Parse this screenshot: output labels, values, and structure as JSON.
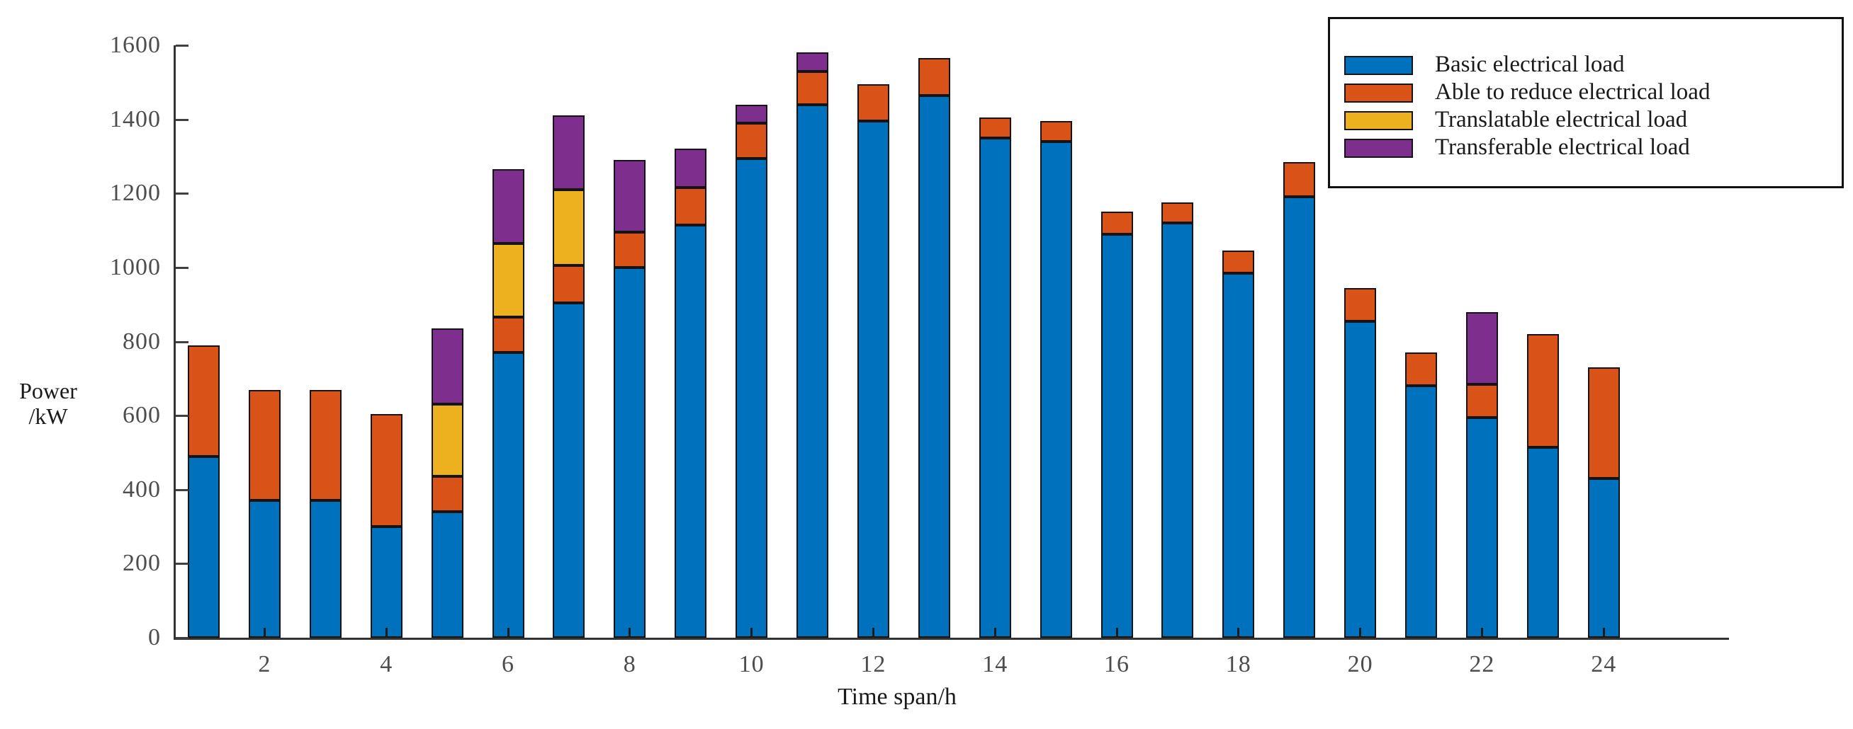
{
  "chart_data": {
    "type": "bar",
    "stacked": true,
    "title": "",
    "xlabel": "Time span/h",
    "ylabel_line1": "Power",
    "ylabel_line2": "/kW",
    "x": [
      1,
      2,
      3,
      4,
      5,
      6,
      7,
      8,
      9,
      10,
      11,
      12,
      13,
      14,
      15,
      16,
      17,
      18,
      19,
      20,
      21,
      22,
      23,
      24
    ],
    "x_tick_values": [
      2,
      4,
      6,
      8,
      10,
      12,
      14,
      16,
      18,
      20,
      22,
      24
    ],
    "x_tick_labels": [
      "2",
      "4",
      "6",
      "8",
      "10",
      "12",
      "14",
      "16",
      "18",
      "20",
      "22",
      "24"
    ],
    "y_ticks": [
      0,
      200,
      400,
      600,
      800,
      1000,
      1200,
      1400,
      1600
    ],
    "y_tick_labels": [
      "0",
      "200",
      "400",
      "600",
      "800",
      "1000",
      "1200",
      "1400",
      "1600"
    ],
    "ylim": [
      0,
      1600
    ],
    "grid": false,
    "legend_position": "top-right",
    "series": [
      {
        "name": "Basic electrical load",
        "color": "#0072BD",
        "values": [
          490,
          370,
          370,
          300,
          340,
          770,
          905,
          1000,
          1115,
          1295,
          1440,
          1395,
          1465,
          1350,
          1340,
          1090,
          1120,
          985,
          1190,
          855,
          680,
          595,
          515,
          430
        ]
      },
      {
        "name": "Able to reduce electrical load",
        "color": "#D95319",
        "values": [
          300,
          300,
          300,
          305,
          95,
          95,
          100,
          95,
          100,
          95,
          90,
          100,
          100,
          55,
          55,
          60,
          55,
          60,
          95,
          90,
          90,
          90,
          305,
          300
        ]
      },
      {
        "name": "Translatable electrical load",
        "color": "#EDB120",
        "values": [
          0,
          0,
          0,
          0,
          195,
          200,
          205,
          0,
          0,
          0,
          0,
          0,
          0,
          0,
          0,
          0,
          0,
          0,
          0,
          0,
          0,
          0,
          0,
          0
        ]
      },
      {
        "name": "Transferable electrical load",
        "color": "#7E2F8E",
        "values": [
          0,
          0,
          0,
          0,
          205,
          200,
          200,
          195,
          105,
          50,
          50,
          0,
          0,
          0,
          0,
          0,
          0,
          0,
          0,
          0,
          0,
          195,
          0,
          0
        ]
      }
    ],
    "totals": [
      790,
      670,
      670,
      605,
      835,
      1265,
      1410,
      1290,
      1320,
      1440,
      1580,
      1495,
      1565,
      1405,
      1395,
      1150,
      1175,
      1045,
      1285,
      945,
      770,
      880,
      820,
      730
    ]
  }
}
